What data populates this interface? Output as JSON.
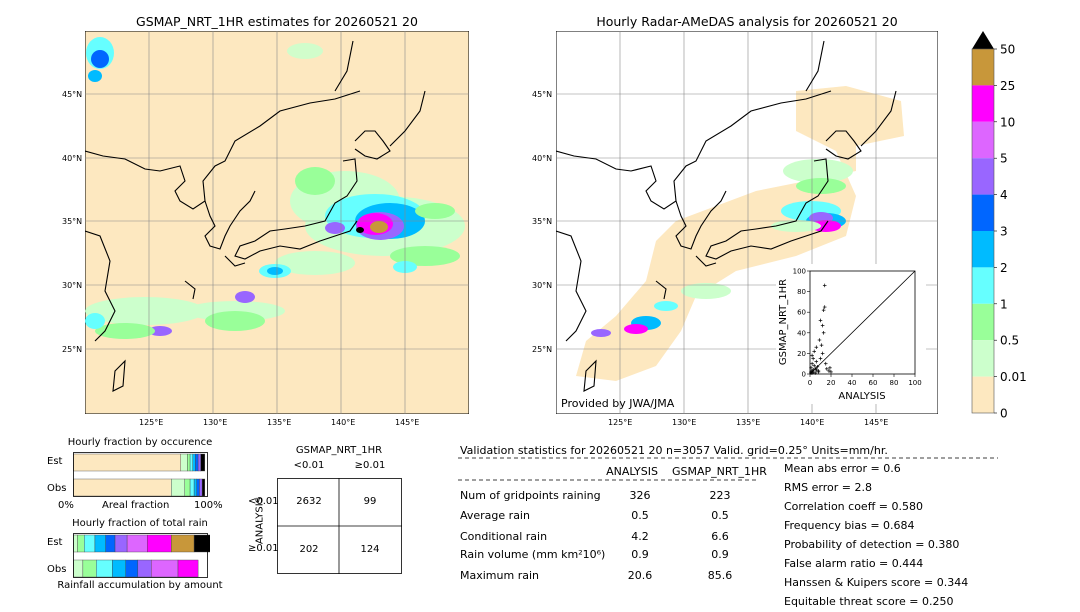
{
  "left_map": {
    "title": "GSMAP_NRT_1HR estimates for 20260521 20",
    "lat_labels": [
      "45°N",
      "40°N",
      "35°N",
      "30°N",
      "25°N"
    ],
    "lon_labels": [
      "125°E",
      "130°E",
      "135°E",
      "140°E",
      "145°E"
    ]
  },
  "right_map": {
    "title": "Hourly Radar-AMeDAS analysis for 20260521 20",
    "lat_labels": [
      "45°N",
      "40°N",
      "35°N",
      "30°N",
      "25°N"
    ],
    "lon_labels": [
      "125°E",
      "130°E",
      "135°E",
      "140°E",
      "145°E"
    ],
    "credit": "Provided by JWA/JMA"
  },
  "colorbar": {
    "labels": [
      "50",
      "25",
      "10",
      "5",
      "4",
      "3",
      "2",
      "1",
      "0.5",
      "0.01",
      "0"
    ],
    "colors": [
      "#c8973a",
      "#ff00ff",
      "#dd66ff",
      "#9966ff",
      "#0066ff",
      "#00bbff",
      "#66ffff",
      "#99ff99",
      "#ccffcc",
      "#fde8c0"
    ]
  },
  "chart_data": [
    {
      "type": "scatter",
      "xlabel": "ANALYSIS",
      "ylabel": "GSMAP_NRT_1HR",
      "xlim": [
        0,
        100
      ],
      "ylim": [
        0,
        100
      ],
      "x_ticks": [
        "0",
        "20",
        "40",
        "60",
        "80",
        "100"
      ],
      "y_ticks": [
        "0",
        "20",
        "40",
        "60",
        "80",
        "100"
      ],
      "points": [
        [
          1,
          1
        ],
        [
          2,
          3
        ],
        [
          1,
          6
        ],
        [
          3,
          2
        ],
        [
          4,
          8
        ],
        [
          2,
          10
        ],
        [
          5,
          5
        ],
        [
          6,
          12
        ],
        [
          3,
          15
        ],
        [
          7,
          7
        ],
        [
          8,
          3
        ],
        [
          2,
          18
        ],
        [
          10,
          15
        ],
        [
          12,
          20
        ],
        [
          4,
          22
        ],
        [
          6,
          26
        ],
        [
          11,
          28
        ],
        [
          9,
          33
        ],
        [
          13,
          40
        ],
        [
          12,
          47
        ],
        [
          10,
          52
        ],
        [
          14,
          65
        ],
        [
          13,
          62
        ],
        [
          14,
          86
        ],
        [
          16,
          5
        ],
        [
          18,
          3
        ],
        [
          15,
          10
        ],
        [
          20,
          2
        ],
        [
          19,
          6
        ],
        [
          5,
          1
        ],
        [
          1,
          2
        ],
        [
          3,
          4
        ],
        [
          2,
          1
        ],
        [
          8,
          2
        ],
        [
          6,
          4
        ]
      ]
    },
    {
      "type": "bar",
      "title": "Hourly fraction by occurence",
      "categories": [
        "Est",
        "Obs"
      ],
      "xlabel": "Areal fraction",
      "x_ticks": [
        "0%",
        "100%"
      ],
      "series": [
        {
          "color": "#fde8c0",
          "values": [
            0.8,
            0.73
          ]
        },
        {
          "color": "#ccffcc",
          "values": [
            0.05,
            0.1
          ]
        },
        {
          "color": "#99ff99",
          "values": [
            0.02,
            0.04
          ]
        },
        {
          "color": "#66ffff",
          "values": [
            0.02,
            0.03
          ]
        },
        {
          "color": "#00bbff",
          "values": [
            0.02,
            0.02
          ]
        },
        {
          "color": "#0066ff",
          "values": [
            0.02,
            0.02
          ]
        },
        {
          "color": "#9966ff",
          "values": [
            0.02,
            0.02
          ]
        },
        {
          "color": "#000000",
          "values": [
            0.03,
            0.02
          ]
        }
      ]
    },
    {
      "type": "bar",
      "title": "Hourly fraction of total rain",
      "categories": [
        "Est",
        "Obs"
      ],
      "xlabel": "Rainfall accumulation by amount",
      "series": [
        {
          "color": "#ccffcc",
          "values": [
            0.03,
            0.07
          ]
        },
        {
          "color": "#99ff99",
          "values": [
            0.05,
            0.1
          ]
        },
        {
          "color": "#66ffff",
          "values": [
            0.08,
            0.12
          ]
        },
        {
          "color": "#00bbff",
          "values": [
            0.08,
            0.1
          ]
        },
        {
          "color": "#0066ff",
          "values": [
            0.07,
            0.09
          ]
        },
        {
          "color": "#9966ff",
          "values": [
            0.09,
            0.1
          ]
        },
        {
          "color": "#dd66ff",
          "values": [
            0.15,
            0.2
          ]
        },
        {
          "color": "#ff00ff",
          "values": [
            0.18,
            0.15
          ]
        },
        {
          "color": "#c8973a",
          "values": [
            0.17,
            0.0
          ]
        },
        {
          "color": "#000000",
          "values": [
            0.2,
            0.0
          ]
        }
      ]
    },
    {
      "type": "table",
      "title": "GSMAP_NRT_1HR",
      "col_headers": [
        "<0.01",
        "≥0.01"
      ],
      "row_label": "ANALYSIS",
      "row_headers": [
        "<0.01",
        "≥0.01"
      ],
      "cells": [
        [
          "2632",
          "99"
        ],
        [
          "202",
          "124"
        ]
      ]
    }
  ],
  "validation": {
    "header": "Validation statistics for 20260521 20  n=3057 Valid. grid=0.25° Units=mm/hr.",
    "col_analysis": "ANALYSIS",
    "col_gsmap": "GSMAP_NRT_1HR",
    "rows": [
      {
        "label": "Num of gridpoints raining",
        "analysis": "326",
        "gsmap": "223"
      },
      {
        "label": "Average rain",
        "analysis": "0.5",
        "gsmap": "0.5"
      },
      {
        "label": "Conditional rain",
        "analysis": "4.2",
        "gsmap": "6.6"
      },
      {
        "label": "Rain volume (mm km²10⁶)",
        "analysis": "0.9",
        "gsmap": "0.9"
      },
      {
        "label": "Maximum rain",
        "analysis": "20.6",
        "gsmap": "85.6"
      }
    ],
    "scores": [
      "Mean abs error =    0.6",
      "RMS error =    2.8",
      "Correlation coeff =  0.580",
      "Frequency bias =  0.684",
      "Probability of detection =  0.380",
      "False alarm ratio =  0.444",
      "Hanssen & Kuipers score =  0.344",
      "Equitable threat score =  0.250"
    ]
  }
}
